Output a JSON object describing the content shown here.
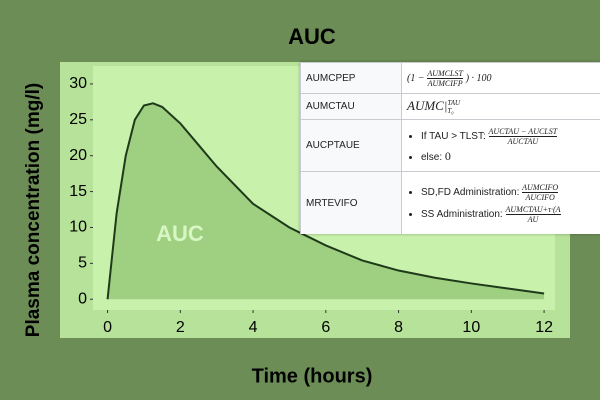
{
  "chart_data": {
    "type": "line",
    "title": "AUC",
    "x_label": "Time (hours)",
    "y_label": "Plasma concentration (mg/l)",
    "annotation": "AUC",
    "x": [
      0,
      0.25,
      0.5,
      0.75,
      1,
      1.25,
      1.5,
      2,
      2.5,
      3,
      4,
      5,
      6,
      7,
      8,
      9,
      10,
      11,
      12
    ],
    "values": [
      0,
      12,
      20,
      25,
      27,
      27.3,
      26.8,
      24.5,
      21.5,
      18.5,
      13.3,
      10,
      7.5,
      5.4,
      4,
      3,
      2.2,
      1.5,
      0.8
    ],
    "color": "#1e3a1a",
    "area_color": "#9fcf80",
    "xlim": [
      -0.4,
      12.3
    ],
    "ylim": [
      -1.5,
      32.5
    ],
    "xticks": [
      0,
      2,
      4,
      6,
      8,
      10,
      12
    ],
    "yticks": [
      0,
      5,
      10,
      15,
      20,
      25,
      30
    ],
    "grid": false
  },
  "table": {
    "rows": [
      {
        "name": "AUMCPEP",
        "prefix": "(1 −",
        "num": "AUMCLST",
        "den": "AUMCIFP",
        "suffix": ") · 100"
      },
      {
        "name": "AUMCTAU",
        "main": "AUMC|",
        "sup": "TAU",
        "sub": "T₀"
      },
      {
        "name": "AUCPTAUE",
        "item1": "If TAU > TLST:",
        "num": "AUCTAU − AUCLST",
        "den": "AUCTAU",
        "item2": "else:",
        "item2_value": "0"
      },
      {
        "name": "MRTEVIFO",
        "item1": "SD,FD Administration:",
        "num1": "AUMCIFO",
        "den1": "AUCIFO",
        "item2": "SS Administration:",
        "num2": "AUMCTAU+τ·(A",
        "den2": "AU"
      }
    ]
  }
}
